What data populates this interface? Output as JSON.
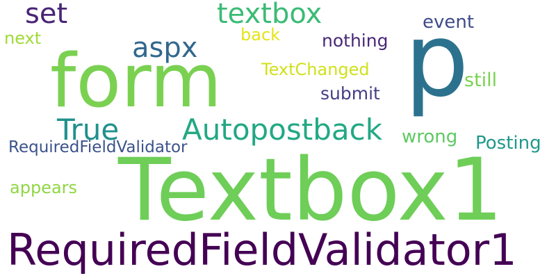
{
  "words": [
    {
      "text": "Textbox1",
      "color": "#6ece58"
    },
    {
      "text": "RequiredFieldValidator1",
      "color": "#440154"
    },
    {
      "text": "form",
      "color": "#7ad151"
    },
    {
      "text": "p",
      "color": "#2c728e"
    },
    {
      "text": "Autopostback",
      "color": "#22a884"
    },
    {
      "text": "True",
      "color": "#21918c"
    },
    {
      "text": "textbox",
      "color": "#3bbb75"
    },
    {
      "text": "aspx",
      "color": "#31688e"
    },
    {
      "text": "set",
      "color": "#482475"
    },
    {
      "text": "RequiredFieldValidator",
      "color": "#3b528b"
    },
    {
      "text": "appears",
      "color": "#8fd744"
    },
    {
      "text": "TextChanged",
      "color": "#d0e11c"
    },
    {
      "text": "submit",
      "color": "#433e85"
    },
    {
      "text": "nothing",
      "color": "#482878"
    },
    {
      "text": "event",
      "color": "#3e4a89"
    },
    {
      "text": "still",
      "color": "#7ad151"
    },
    {
      "text": "Posting",
      "color": "#1f988b"
    },
    {
      "text": "wrong",
      "color": "#5ec962"
    },
    {
      "text": "back",
      "color": "#e4e419"
    },
    {
      "text": "next",
      "color": "#a0da39"
    }
  ]
}
